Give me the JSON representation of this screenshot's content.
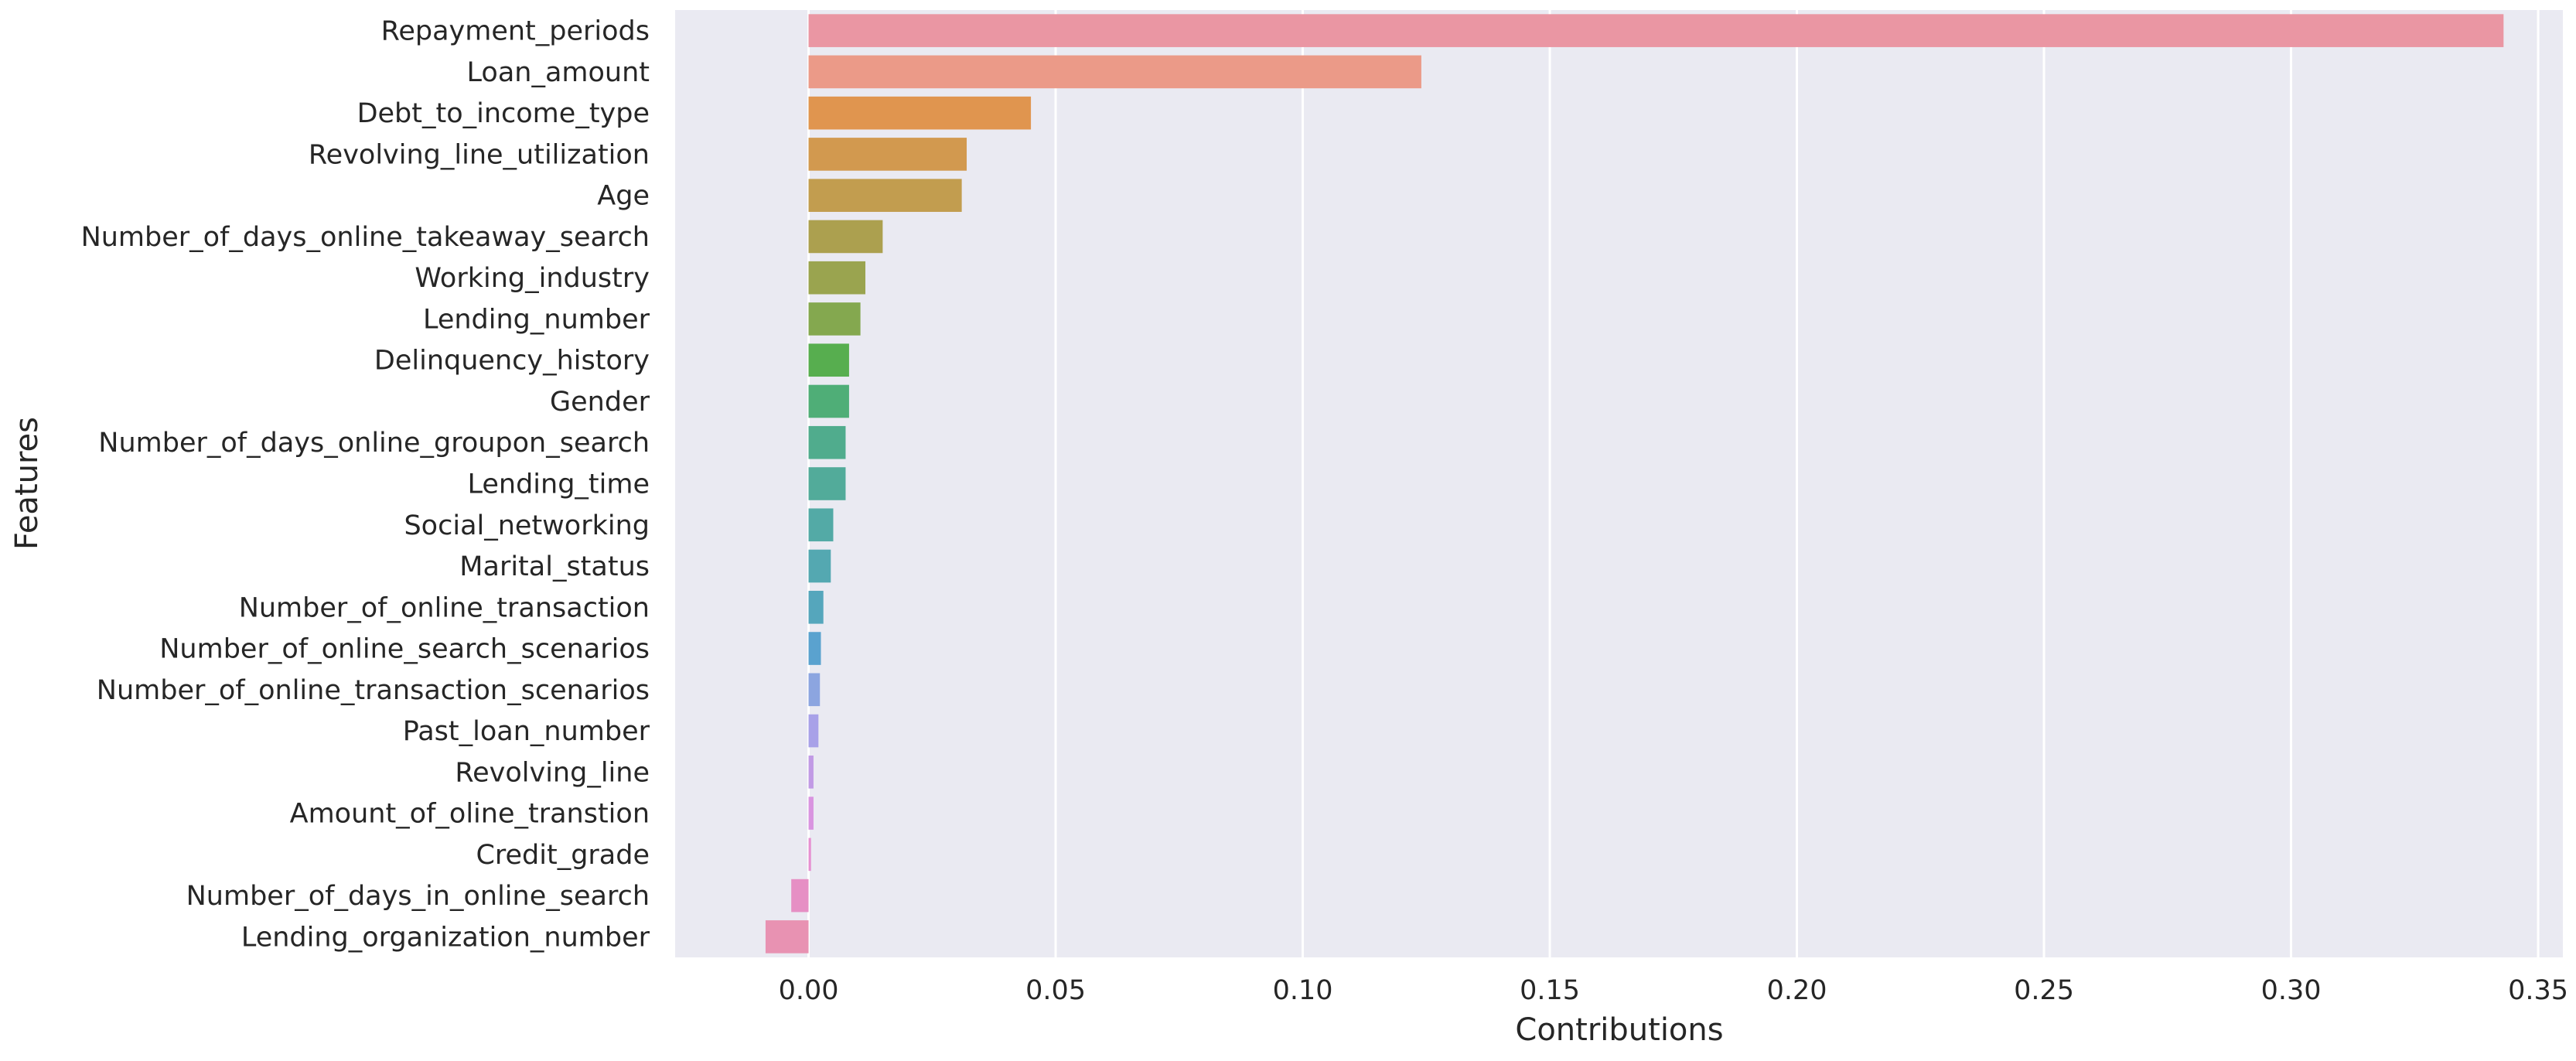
{
  "chart_data": {
    "type": "bar",
    "orientation": "horizontal",
    "xlabel": "Contributions",
    "ylabel": "Features",
    "xlim": [
      -0.027,
      0.355
    ],
    "xticks": [
      "0.00",
      "0.05",
      "0.10",
      "0.15",
      "0.20",
      "0.25",
      "0.30",
      "0.35"
    ],
    "xtick_values": [
      0.0,
      0.05,
      0.1,
      0.15,
      0.2,
      0.25,
      0.3,
      0.35
    ],
    "grid": true,
    "background": "#eaeaf2",
    "categories": [
      "Repayment_periods",
      "Loan_amount",
      "Debt_to_income_type",
      "Revolving_line_utilization",
      "Age",
      "Number_of_days_online_takeaway_search",
      "Working_industry",
      "Lending_number",
      "Delinquency_history",
      "Gender",
      "Number_of_days_online_groupon_search",
      "Lending_time",
      "Social_networking",
      "Marital_status",
      "Number_of_online_transaction",
      "Number_of_online_search_scenarios",
      "Number_of_online_transaction_scenarios",
      "Past_loan_number",
      "Revolving_line",
      "Amount_of_oline_transtion",
      "Credit_grade",
      "Number_of_days_in_online_search",
      "Lending_organization_number"
    ],
    "values": [
      0.343,
      0.124,
      0.045,
      0.032,
      0.031,
      0.015,
      0.0115,
      0.0105,
      0.0082,
      0.0082,
      0.0075,
      0.0075,
      0.005,
      0.0045,
      0.003,
      0.0025,
      0.0023,
      0.002,
      0.001,
      0.001,
      0.0005,
      -0.0035,
      -0.0087
    ],
    "colors": [
      "#ea96a3",
      "#eb9a88",
      "#e0954f",
      "#d2994f",
      "#c29d4f",
      "#aca04f",
      "#9aa44f",
      "#84a84f",
      "#57ae4f",
      "#4fae77",
      "#50ac8d",
      "#52ab9a",
      "#53aaa6",
      "#54a8b1",
      "#55a6bc",
      "#5aa2cf",
      "#8ca5e0",
      "#a8a1e8",
      "#c19ae5",
      "#d994e0",
      "#e690d1",
      "#e68fc4",
      "#e892b2"
    ]
  }
}
